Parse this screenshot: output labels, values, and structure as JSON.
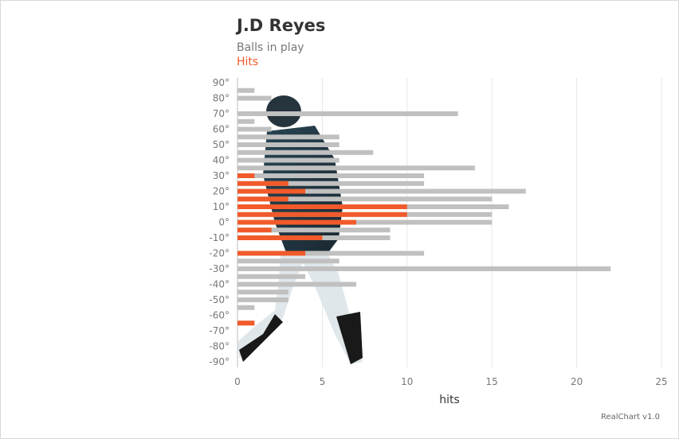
{
  "chart_data": {
    "type": "bar",
    "orientation": "horizontal",
    "title": "J.D Reyes",
    "subtitle": "Balls in play",
    "xlabel": "hits",
    "xlim": [
      0,
      25
    ],
    "x_ticks": [
      0,
      5,
      10,
      15,
      20,
      25
    ],
    "y_ticks": [
      "90°",
      "80°",
      "70°",
      "60°",
      "50°",
      "40°",
      "30°",
      "20°",
      "10°",
      "0°",
      "-10°",
      "-20°",
      "-30°",
      "-40°",
      "-50°",
      "-60°",
      "-70°",
      "-80°",
      "-90°"
    ],
    "categories": [
      90,
      85,
      80,
      75,
      70,
      65,
      60,
      55,
      50,
      45,
      40,
      35,
      30,
      25,
      20,
      15,
      10,
      5,
      0,
      -5,
      -10,
      -15,
      -20,
      -25,
      -30,
      -35,
      -40,
      -45,
      -50,
      -55,
      -60,
      -65,
      -70,
      -75,
      -80,
      -85,
      -90
    ],
    "series": [
      {
        "name": "Balls in play",
        "color": "#c0c0c0",
        "values": [
          0,
          1,
          2,
          0,
          13,
          1,
          2,
          6,
          6,
          8,
          6,
          14,
          11,
          11,
          17,
          15,
          16,
          15,
          15,
          9,
          9,
          0,
          11,
          6,
          22,
          4,
          7,
          3,
          3,
          1,
          0,
          1,
          0,
          0,
          0,
          0,
          0
        ]
      },
      {
        "name": "Hits",
        "color": "#f15a2b",
        "values": [
          0,
          0,
          0,
          0,
          0,
          0,
          0,
          0,
          0,
          0,
          0,
          0,
          1,
          3,
          4,
          3,
          10,
          10,
          7,
          2,
          5,
          0,
          4,
          0,
          0,
          0,
          0,
          0,
          0,
          0,
          0,
          1,
          0,
          0,
          0,
          0,
          0
        ]
      }
    ],
    "grid": true,
    "credit": "RealChart v1.0"
  }
}
